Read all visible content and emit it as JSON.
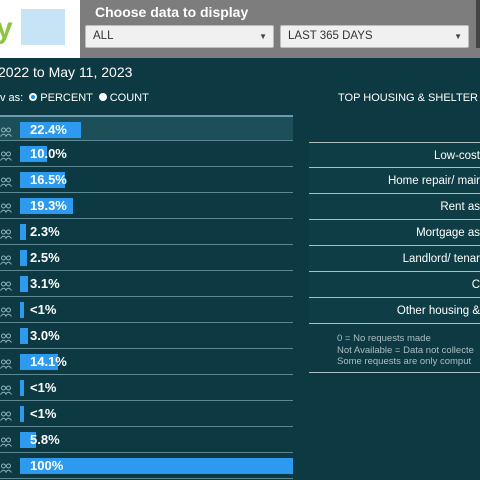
{
  "header": {
    "logo_letter": "y",
    "choose_title": "Choose data to display",
    "filter_select": "ALL",
    "range_select": "LAST 365 DAYS"
  },
  "date_range_text": "2022 to May 11, 2023",
  "view_as": {
    "label": "v as:",
    "option_percent": "PERCENT",
    "option_count": "COUNT",
    "selected": "PERCENT"
  },
  "top_heading": "TOP HOUSING & SHELTER",
  "rows": [
    {
      "value": "22.4%",
      "percent": 22.4
    },
    {
      "value": "10.0%",
      "percent": 10.0
    },
    {
      "value": "16.5%",
      "percent": 16.5
    },
    {
      "value": "19.3%",
      "percent": 19.3
    },
    {
      "value": "2.3%",
      "percent": 2.3
    },
    {
      "value": "2.5%",
      "percent": 2.5
    },
    {
      "value": "3.1%",
      "percent": 3.1
    },
    {
      "value": "<1%",
      "percent": 0.5
    },
    {
      "value": "3.0%",
      "percent": 3.0
    },
    {
      "value": "14.1%",
      "percent": 14.1
    },
    {
      "value": "<1%",
      "percent": 0.5
    },
    {
      "value": "<1%",
      "percent": 0.5
    },
    {
      "value": "5.8%",
      "percent": 5.8
    },
    {
      "value": "100%",
      "percent": 100
    }
  ],
  "categories": [
    "Low-cost",
    "Home repair/ mair",
    "Rent as",
    "Mortgage as",
    "Landlord/ tenar",
    "C",
    "Other housing &"
  ],
  "notes": [
    "0 = No requests made",
    "Not Available = Data not collecte",
    "Some requests are only comput"
  ],
  "colors": {
    "background": "#0c3942",
    "bar": "#2d9af0",
    "header": "#7d7d7d"
  }
}
